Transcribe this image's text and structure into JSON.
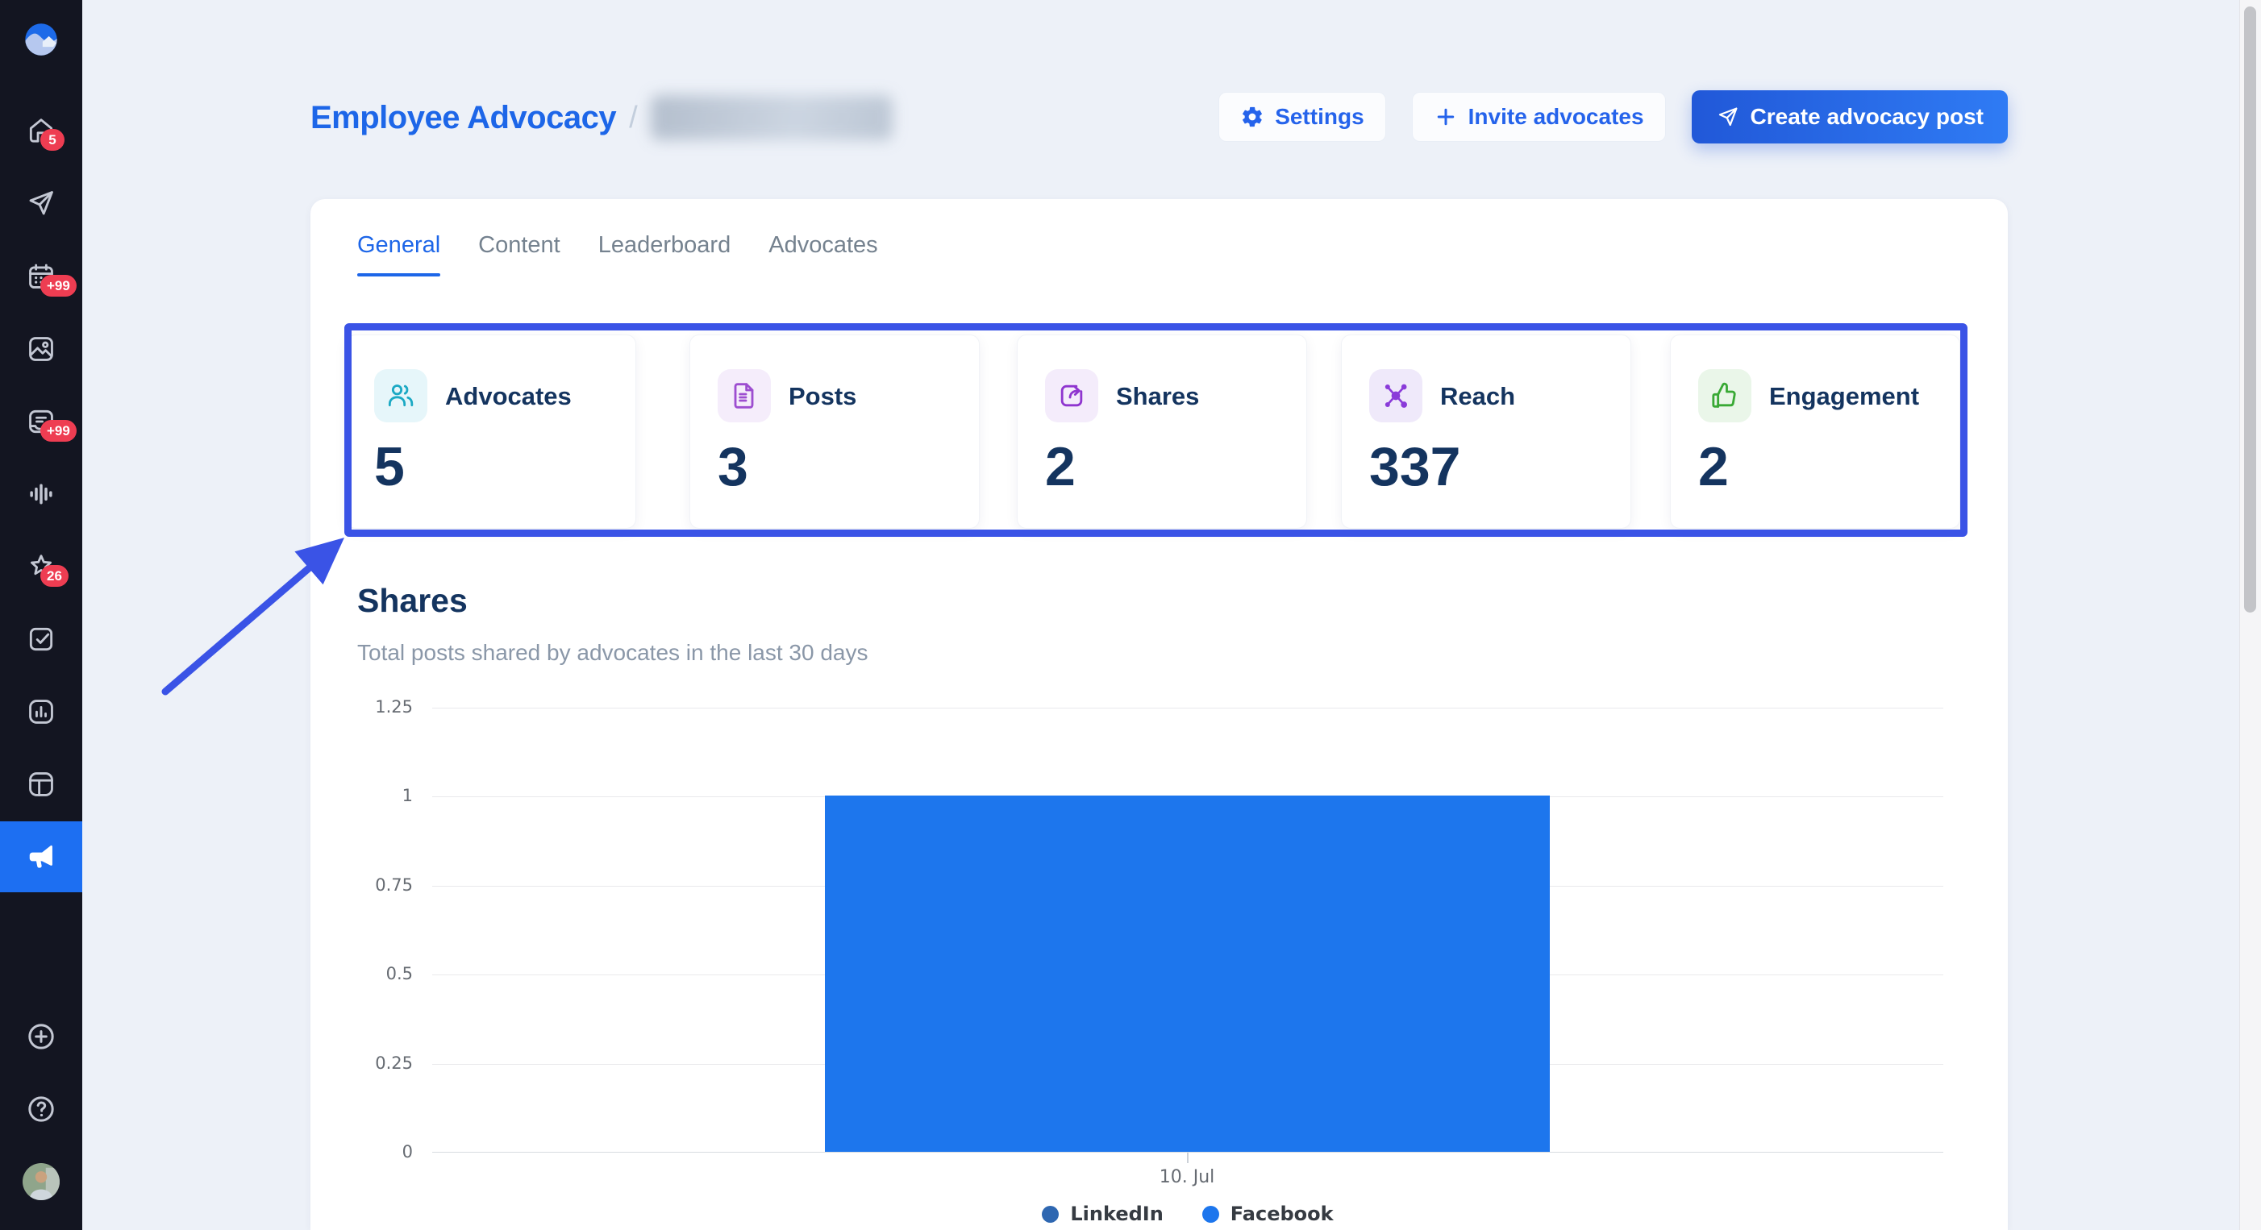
{
  "colors": {
    "accent_blue": "#1d66e8",
    "sidebar_bg": "#131521",
    "sidebar_active_bg": "#1d6ff2",
    "badge_red": "#ee3d52",
    "navy_text": "#14345f",
    "muted_text": "#8a97a8",
    "annotation_blue": "#3a53e6",
    "bar_blue": "#1d76ed",
    "page_bg": "#edf1f8"
  },
  "sidebar": {
    "items": [
      {
        "name": "home",
        "badge": "5"
      },
      {
        "name": "publish"
      },
      {
        "name": "calendar",
        "badge": "+99"
      },
      {
        "name": "media"
      },
      {
        "name": "inbox",
        "badge": "+99"
      },
      {
        "name": "listen"
      },
      {
        "name": "reviews",
        "badge": "26"
      },
      {
        "name": "tasks"
      },
      {
        "name": "analytics"
      },
      {
        "name": "reports"
      },
      {
        "name": "advocacy",
        "active": true
      }
    ],
    "bottom_items": [
      {
        "name": "add-new"
      },
      {
        "name": "help"
      },
      {
        "name": "profile"
      }
    ]
  },
  "header": {
    "title": "Employee Advocacy",
    "separator": "/",
    "company_name_blurred": true,
    "buttons": {
      "settings": "Settings",
      "invite": "Invite advocates",
      "create": "Create advocacy post"
    }
  },
  "tabs": [
    {
      "label": "General",
      "active": true
    },
    {
      "label": "Content"
    },
    {
      "label": "Leaderboard"
    },
    {
      "label": "Advocates"
    }
  ],
  "stats": [
    {
      "label": "Advocates",
      "value": "5",
      "color": "#1ba9c4",
      "bg": "#e6f6fa"
    },
    {
      "label": "Posts",
      "value": "3",
      "color": "#9d4ed0",
      "bg": "#f5edfb"
    },
    {
      "label": "Shares",
      "value": "2",
      "color": "#8f35cf",
      "bg": "#f4ecfb"
    },
    {
      "label": "Reach",
      "value": "337",
      "color": "#8a3bd9",
      "bg": "#efe9fa"
    },
    {
      "label": "Engagement",
      "value": "2",
      "color": "#39a935",
      "bg": "#eaf6e9"
    }
  ],
  "section": {
    "title": "Shares",
    "subtitle": "Total posts shared by advocates in the last 30 days"
  },
  "chart_data": {
    "type": "bar",
    "title": "Shares",
    "categories": [
      "10. Jul"
    ],
    "series": [
      {
        "name": "LinkedIn",
        "color": "#2e67b1",
        "values": [
          0
        ]
      },
      {
        "name": "Facebook",
        "color": "#1d76ed",
        "values": [
          1
        ]
      }
    ],
    "ylim": [
      0,
      1.25
    ],
    "yticks": [
      0,
      0.25,
      0.5,
      0.75,
      1,
      1.25
    ],
    "ytick_labels_top_to_bottom": [
      "1.25",
      "1",
      "0.75",
      "0.5",
      "0.25",
      "0"
    ],
    "xlabel": "",
    "ylabel": "",
    "grid": true,
    "legend_position": "bottom"
  }
}
